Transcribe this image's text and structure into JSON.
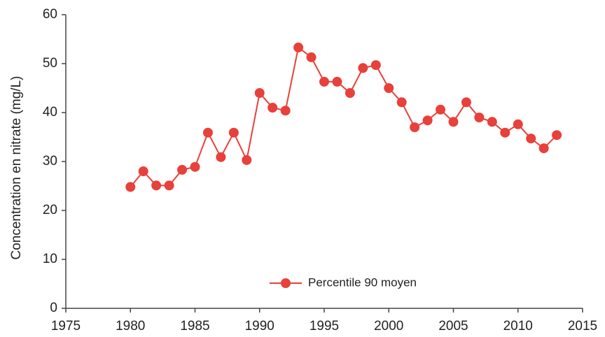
{
  "chart_data": {
    "type": "line",
    "y_label": "Concentration en nitrate (mg/L)",
    "x": [
      1980,
      1981,
      1982,
      1983,
      1984,
      1985,
      1986,
      1987,
      1988,
      1989,
      1990,
      1991,
      1992,
      1993,
      1994,
      1995,
      1996,
      1997,
      1998,
      1999,
      2000,
      2001,
      2002,
      2003,
      2004,
      2005,
      2006,
      2007,
      2008,
      2009,
      2010,
      2011,
      2012,
      2013
    ],
    "series": [
      {
        "name": "Percentile 90 moyen",
        "color": "#e8403a",
        "values": [
          24.8,
          28.0,
          25.1,
          25.1,
          28.3,
          28.9,
          35.9,
          30.9,
          35.9,
          30.3,
          44.0,
          41.0,
          40.4,
          53.3,
          51.3,
          46.3,
          46.3,
          44.0,
          49.1,
          49.7,
          45.0,
          42.1,
          37.0,
          38.4,
          40.6,
          38.1,
          42.1,
          39.0,
          38.1,
          35.9,
          37.6,
          34.7,
          32.7,
          35.4
        ]
      }
    ],
    "xlim": [
      1975,
      2015
    ],
    "xticks": [
      1975,
      1980,
      1985,
      1990,
      1995,
      2000,
      2005,
      2010,
      2015
    ],
    "ylim": [
      0,
      60
    ],
    "yticks": [
      0,
      10,
      20,
      30,
      40,
      50,
      60
    ],
    "grid": false,
    "legend": "bottom"
  }
}
